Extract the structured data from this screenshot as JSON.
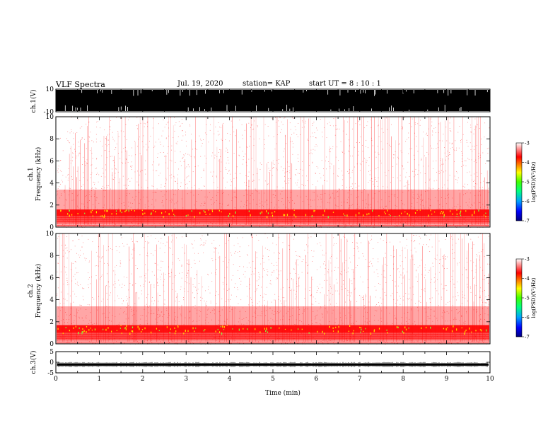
{
  "header": {
    "title": "VLF Spectra",
    "date": "Jul. 19, 2020",
    "station": "station= KAP",
    "start": "start  UT  =   8  : 10 : 1"
  },
  "chart_data": [
    {
      "type": "line",
      "panel": "ch1-waveform",
      "ylabel": "ch.1(V)",
      "ylim": [
        -10,
        10
      ],
      "yticks": [
        "10",
        "-10"
      ],
      "xlim": [
        0,
        10
      ],
      "note": "saturated waveform, clipped near ±10 V"
    },
    {
      "type": "heatmap",
      "panel": "ch1-spectrogram",
      "ylabel": "ch.1\nFrequency (kHz)",
      "ylim": [
        0,
        10
      ],
      "yticks": [
        "0",
        "2",
        "4",
        "6",
        "8",
        "10"
      ],
      "xlim": [
        0,
        10
      ],
      "colorbar": {
        "label": "log(PSD)(V²/Hz)",
        "range": [
          -7,
          -3
        ],
        "ticks": [
          "-3",
          "-4",
          "-5",
          "-6",
          "-7"
        ]
      },
      "features": {
        "strong_band_khz": [
          1.0,
          1.6
        ],
        "moderate_band_khz": [
          0,
          3.4
        ]
      }
    },
    {
      "type": "heatmap",
      "panel": "ch2-spectrogram",
      "ylabel": "ch.2\nFrequency (kHz)",
      "ylim": [
        0,
        10
      ],
      "yticks": [
        "0",
        "2",
        "4",
        "6",
        "8",
        "10"
      ],
      "xlim": [
        0,
        10
      ],
      "colorbar": {
        "label": "log(PSD)(V²/Hz)",
        "range": [
          -7,
          -3
        ],
        "ticks": [
          "-3",
          "-4",
          "-5",
          "-6",
          "-7"
        ]
      },
      "features": {
        "strong_band_khz": [
          1.0,
          1.7
        ],
        "moderate_band_khz": [
          0,
          3.4
        ]
      }
    },
    {
      "type": "line",
      "panel": "ch3-waveform",
      "ylabel": "ch.3(V)",
      "ylim": [
        -5,
        5
      ],
      "yticks": [
        "5",
        "0",
        "-5"
      ],
      "xlim": [
        0,
        10
      ],
      "xlabel": "Time (min)",
      "xticks": [
        "0",
        "1",
        "2",
        "3",
        "4",
        "5",
        "6",
        "7",
        "8",
        "9",
        "10"
      ],
      "note": "waveform around -1 V, amplitude ~0.5 V"
    }
  ],
  "colors": {
    "colormap": [
      "#000080",
      "#0000ff",
      "#00a0ff",
      "#00ff80",
      "#40ff00",
      "#ffff00",
      "#ff8000",
      "#ff0000",
      "#ffffff"
    ],
    "signal": "#ff0000",
    "trace": "#000000"
  }
}
